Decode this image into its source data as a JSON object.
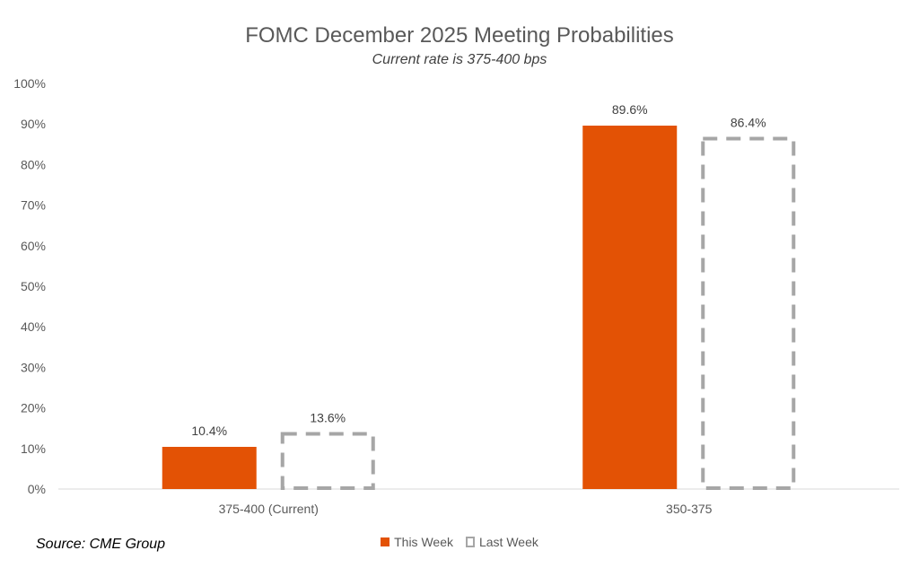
{
  "chart_data": {
    "type": "bar",
    "title": "FOMC December 2025 Meeting Probabilities",
    "subtitle": "Current rate is 375-400 bps",
    "categories": [
      "375-400 (Current)",
      "350-375"
    ],
    "series": [
      {
        "name": "This Week",
        "values": [
          10.4,
          89.6
        ],
        "labels": [
          "10.4%",
          "89.6%"
        ],
        "color": "#e35205",
        "style": "solid"
      },
      {
        "name": "Last Week",
        "values": [
          13.6,
          86.4
        ],
        "labels": [
          "13.6%",
          "86.4%"
        ],
        "color": "#a6a6a6",
        "style": "dashed-outline"
      }
    ],
    "ylim": [
      0,
      100
    ],
    "yticks": [
      "0%",
      "10%",
      "20%",
      "30%",
      "40%",
      "50%",
      "60%",
      "70%",
      "80%",
      "90%",
      "100%"
    ],
    "grid": false,
    "legend": "bottom-center"
  },
  "source": "Source: CME Group"
}
